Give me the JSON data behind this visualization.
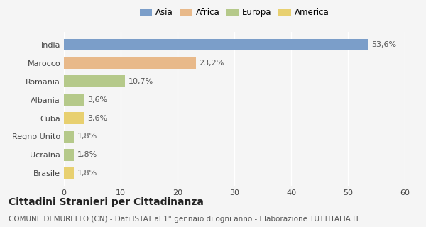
{
  "categories": [
    "India",
    "Marocco",
    "Romania",
    "Albania",
    "Cuba",
    "Regno Unito",
    "Ucraina",
    "Brasile"
  ],
  "values": [
    53.6,
    23.2,
    10.7,
    3.6,
    3.6,
    1.8,
    1.8,
    1.8
  ],
  "labels": [
    "53,6%",
    "23,2%",
    "10,7%",
    "3,6%",
    "3,6%",
    "1,8%",
    "1,8%",
    "1,8%"
  ],
  "colors": [
    "#7b9ec9",
    "#e8b98a",
    "#b5c98a",
    "#b5c98a",
    "#e8d070",
    "#b5c98a",
    "#b5c98a",
    "#e8d070"
  ],
  "legend": [
    {
      "label": "Asia",
      "color": "#7b9ec9"
    },
    {
      "label": "Africa",
      "color": "#e8b98a"
    },
    {
      "label": "Europa",
      "color": "#b5c98a"
    },
    {
      "label": "America",
      "color": "#e8d070"
    }
  ],
  "xlim": [
    0,
    60
  ],
  "xticks": [
    0,
    10,
    20,
    30,
    40,
    50,
    60
  ],
  "title": "Cittadini Stranieri per Cittadinanza",
  "subtitle": "COMUNE DI MURELLO (CN) - Dati ISTAT al 1° gennaio di ogni anno - Elaborazione TUTTITALIA.IT",
  "background_color": "#f5f5f5",
  "bar_height": 0.65,
  "title_fontsize": 10,
  "subtitle_fontsize": 7.5,
  "tick_fontsize": 8,
  "label_fontsize": 8,
  "legend_fontsize": 8.5
}
